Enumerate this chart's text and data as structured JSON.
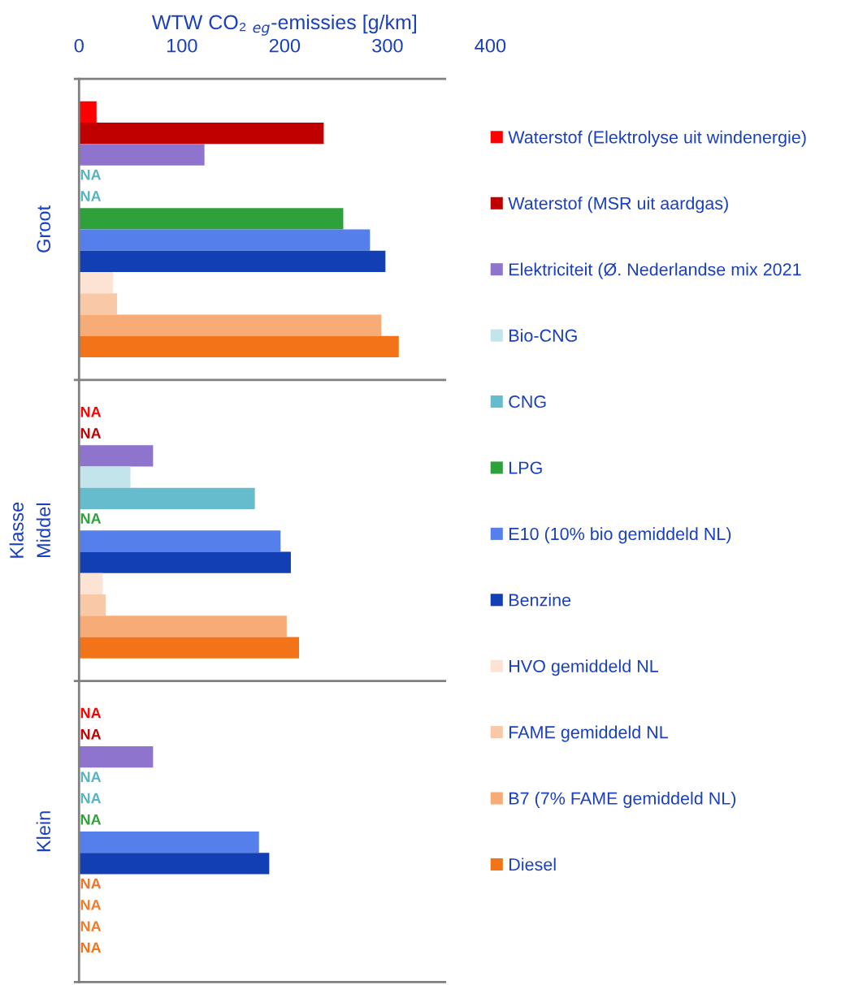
{
  "chart_data": {
    "type": "bar",
    "orientation": "horizontal",
    "xlabel": "WTW CO₂ $_{eg}$-emissies [g/km]",
    "ylabel": "Klasse",
    "categories": [
      "Groot",
      "Middel",
      "Klein"
    ],
    "xlim": [
      0,
      400
    ],
    "xticks": [
      0,
      100,
      200,
      300,
      400
    ],
    "grid": false,
    "legend": "right",
    "series": [
      {
        "name": "Waterstof (Elektrolyse uit windenergie)",
        "color": "#ff0000",
        "values": [
          17,
          null,
          null
        ],
        "value_labels": [
          null,
          "NA",
          "NA"
        ]
      },
      {
        "name": "Waterstof (MSR uit aardgas)",
        "color": "#c00000",
        "values": [
          238,
          null,
          null
        ],
        "value_labels": [
          null,
          "NA",
          "NA"
        ]
      },
      {
        "name": "Elektriciteit (Ø. Nederlandse mix 2021",
        "color": "#8e74cc",
        "values": [
          122,
          72,
          72
        ],
        "value_labels": [
          null,
          null,
          null
        ]
      },
      {
        "name": "Bio-CNG",
        "color": "#c3e4ea",
        "values": [
          null,
          50,
          null
        ],
        "value_labels": [
          "NA",
          null,
          "NA"
        ]
      },
      {
        "name": "CNG",
        "color": "#66bccc",
        "values": [
          null,
          171,
          null
        ],
        "value_labels": [
          "NA",
          null,
          "NA"
        ]
      },
      {
        "name": "LPG",
        "color": "#2fa13b",
        "values": [
          257,
          null,
          null
        ],
        "value_labels": [
          null,
          "NA",
          "NA"
        ]
      },
      {
        "name": "E10 (10% bio gemiddeld NL)",
        "color": "#5580ec",
        "values": [
          283,
          196,
          175
        ],
        "value_labels": [
          null,
          null,
          null
        ]
      },
      {
        "name": "Benzine",
        "color": "#133fb5",
        "values": [
          298,
          206,
          185
        ],
        "value_labels": [
          null,
          null,
          null
        ]
      },
      {
        "name": "HVO gemiddeld NL",
        "color": "#fce3d4",
        "values": [
          33,
          23,
          null
        ],
        "value_labels": [
          null,
          null,
          "NA"
        ]
      },
      {
        "name": "FAME gemiddeld NL",
        "color": "#f9c8a6",
        "values": [
          37,
          26,
          null
        ],
        "value_labels": [
          null,
          null,
          "NA"
        ]
      },
      {
        "name": "B7 (7% FAME gemiddeld NL)",
        "color": "#f7ab77",
        "values": [
          294,
          202,
          null
        ],
        "value_labels": [
          null,
          null,
          "NA"
        ]
      },
      {
        "name": "Diesel",
        "color": "#f37318",
        "values": [
          311,
          214,
          null
        ],
        "value_labels": [
          null,
          null,
          "NA"
        ]
      }
    ]
  }
}
